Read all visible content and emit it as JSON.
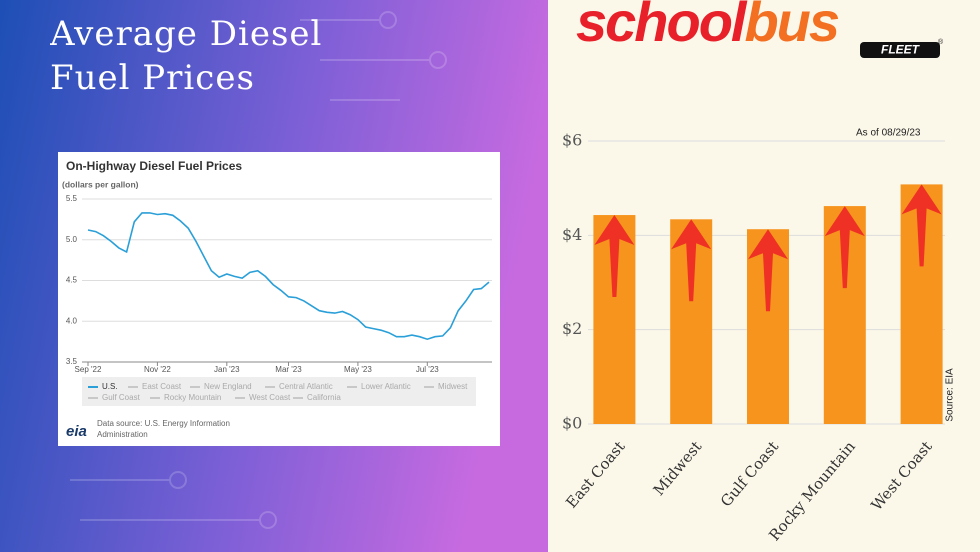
{
  "title": "Average Diesel Fuel Prices",
  "logo": {
    "part1": "school",
    "part2": "bus",
    "mark": "®",
    "badge": "FLEET"
  },
  "chart_data": [
    {
      "type": "line",
      "title": "On-Highway Diesel Fuel Prices",
      "subtitle": "(dollars per gallon)",
      "categories": [
        "Sep '22",
        null,
        null,
        null,
        null,
        null,
        null,
        null,
        null,
        "Nov '22",
        null,
        null,
        null,
        null,
        null,
        null,
        null,
        null,
        "Jan '23",
        null,
        null,
        null,
        null,
        null,
        null,
        null,
        "Mar '23",
        null,
        null,
        null,
        null,
        null,
        null,
        null,
        null,
        "May '23",
        null,
        null,
        null,
        null,
        null,
        null,
        null,
        null,
        "Jul '23",
        null,
        null,
        null,
        null,
        null,
        null,
        null,
        null
      ],
      "series": [
        {
          "name": "U.S.",
          "color": "#2a9fd8",
          "values": [
            5.12,
            5.1,
            5.05,
            4.98,
            4.9,
            4.85,
            5.22,
            5.33,
            5.33,
            5.31,
            5.32,
            5.3,
            5.23,
            5.14,
            4.98,
            4.8,
            4.62,
            4.54,
            4.58,
            4.55,
            4.53,
            4.6,
            4.62,
            4.55,
            4.45,
            4.38,
            4.3,
            4.29,
            4.25,
            4.19,
            4.13,
            4.11,
            4.1,
            4.12,
            4.08,
            4.02,
            3.93,
            3.91,
            3.89,
            3.86,
            3.81,
            3.81,
            3.83,
            3.81,
            3.78,
            3.81,
            3.82,
            3.92,
            4.13,
            4.25,
            4.39,
            4.4,
            4.48
          ]
        }
      ],
      "inactive_legend": [
        "East Coast",
        "New England",
        "Central Atlantic",
        "Lower Atlantic",
        "Midwest",
        "Gulf Coast",
        "Rocky Mountain",
        "West Coast",
        "California"
      ],
      "inactive_color": "#c8c8c8",
      "ylim": [
        3.5,
        5.5
      ],
      "yticks": [
        3.5,
        {
          "value": 4,
          "label": "4.0"
        },
        4.5,
        {
          "value": 5,
          "label": "5.0"
        },
        5.5
      ],
      "grid": true,
      "source_logo": "eia",
      "source": "Data source: U.S. Energy Information Administration"
    },
    {
      "type": "bar",
      "categories": [
        "East Coast",
        "Midwest",
        "Gulf Coast",
        "Rocky Mountain",
        "West Coast"
      ],
      "values": [
        4.43,
        4.34,
        4.13,
        4.62,
        5.08
      ],
      "color": "#f7941d",
      "ylim": [
        0,
        6
      ],
      "yticks": [
        {
          "value": 0,
          "label": "$0"
        },
        {
          "value": 2,
          "label": "$2"
        },
        {
          "value": 4,
          "label": "$4"
        },
        {
          "value": 6,
          "label": "$6"
        }
      ],
      "grid": true,
      "annotation": "As of 08/29/23",
      "source": "Source: EIA"
    }
  ]
}
